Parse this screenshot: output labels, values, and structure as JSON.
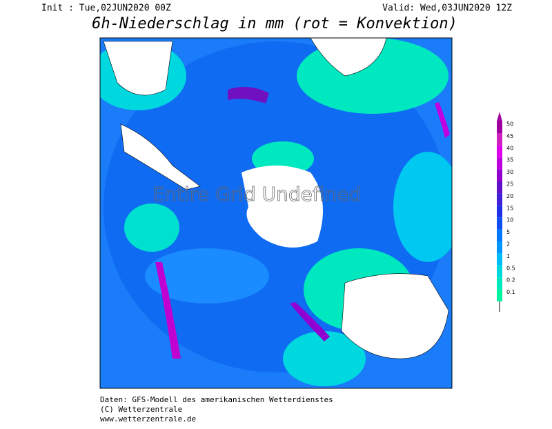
{
  "header": {
    "init": "Init : Tue,02JUN2020 00Z",
    "valid": "Valid: Wed,03JUN2020 12Z",
    "title": "6h-Niederschlag in mm (rot = Konvektion)"
  },
  "map": {
    "overlay": "Entire Grid Undefined"
  },
  "legend": {
    "items": [
      {
        "label": "50",
        "color": "#a000a0"
      },
      {
        "label": "45",
        "color": "#d020c0"
      },
      {
        "label": "40",
        "color": "#e000f0"
      },
      {
        "label": "35",
        "color": "#c000e0"
      },
      {
        "label": "30",
        "color": "#9000d0"
      },
      {
        "label": "25",
        "color": "#6010c8"
      },
      {
        "label": "20",
        "color": "#4020d8"
      },
      {
        "label": "15",
        "color": "#2030e8"
      },
      {
        "label": "10",
        "color": "#1050f0"
      },
      {
        "label": "5",
        "color": "#0078ff"
      },
      {
        "label": "2",
        "color": "#0098ff"
      },
      {
        "label": "1",
        "color": "#00bcf8"
      },
      {
        "label": "0.5",
        "color": "#00d8e0"
      },
      {
        "label": "0.2",
        "color": "#00e8c0"
      },
      {
        "label": "0.1",
        "color": "#00f4a0"
      }
    ]
  },
  "footer": {
    "lines": [
      "Daten: GFS-Modell des amerikanischen Wetterdienstes",
      "(C) Wetterzentrale",
      "www.wetterzentrale.de"
    ]
  }
}
